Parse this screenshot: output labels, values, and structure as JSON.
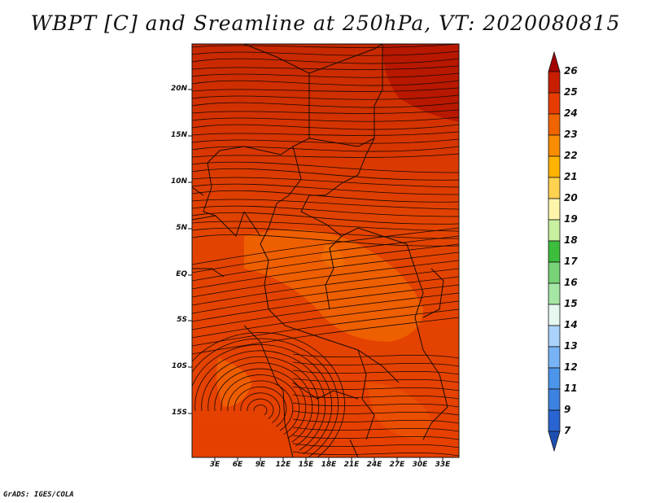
{
  "title": "WBPT [C] and Sreamline at 250hPa, VT: 2020080815",
  "credit": "GrADS: IGES/COLA",
  "map": {
    "region": "Central and southern Africa",
    "lat_ticks": [
      "20N",
      "15N",
      "10N",
      "5N",
      "EQ",
      "5S",
      "10S",
      "15S"
    ],
    "lon_ticks": [
      "3E",
      "6E",
      "9E",
      "12E",
      "15E",
      "18E",
      "21E",
      "24E",
      "27E",
      "30E",
      "33E"
    ],
    "lat_range": [
      -20,
      25
    ],
    "lon_range": [
      0,
      35
    ]
  },
  "colorbar": {
    "levels": [
      "26",
      "25",
      "24",
      "23",
      "22",
      "21",
      "20",
      "19",
      "18",
      "17",
      "16",
      "15",
      "14",
      "13",
      "12",
      "11",
      "9",
      "7"
    ],
    "colors": [
      "#a50000",
      "#c81e00",
      "#e63c00",
      "#f06400",
      "#fa8c00",
      "#ffb400",
      "#ffd250",
      "#fff5aa",
      "#c8f0a0",
      "#3cbe3c",
      "#78d278",
      "#a5e6a5",
      "#e6f8f0",
      "#aad2fa",
      "#78b4f5",
      "#4b96eb",
      "#3c82e1",
      "#2864d2",
      "#1e50b4"
    ]
  }
}
